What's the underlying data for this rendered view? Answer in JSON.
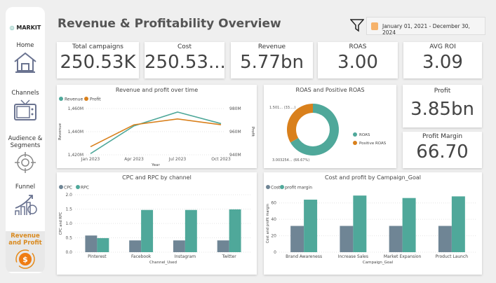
{
  "sidebar": {
    "logo": "MARKIT",
    "items": [
      {
        "label": "Home",
        "icon": "home-icon"
      },
      {
        "label": "Channels",
        "icon": "tv-icon"
      },
      {
        "label": "Audience & Segments",
        "icon": "target-icon"
      },
      {
        "label": "Funnel",
        "icon": "growth-chart-icon"
      },
      {
        "label": "Revenue and Profit",
        "icon": "dollar-cycle-icon",
        "active": true
      }
    ]
  },
  "header": {
    "title": "Revenue & Profitability Overview",
    "date_range": "January 01, 2021 - December 30, 2024"
  },
  "kpis": [
    {
      "label": "Total campaigns",
      "value": "250.53K"
    },
    {
      "label": "Cost",
      "value": "250.53..."
    },
    {
      "label": "Revenue",
      "value": "5.77bn"
    },
    {
      "label": "ROAS",
      "value": "3.00"
    },
    {
      "label": "AVG ROI",
      "value": "3.09"
    }
  ],
  "profit": {
    "label": "Profit",
    "value": "3.85bn"
  },
  "profit_margin": {
    "label": "Profit Margin",
    "value": "66.70"
  },
  "colors": {
    "teal": "#4fa89a",
    "orange": "#d9801c",
    "slate": "#6f8595"
  },
  "chart_data": [
    {
      "type": "line",
      "title": "Revenue and profit over time",
      "xlabel": "Year",
      "ylabel": "Revenue",
      "y2label": "Profit",
      "categories": [
        "Jan 2023",
        "Apr 2023",
        "Jul 2023",
        "Oct 2023"
      ],
      "ylim": [
        1420,
        1460
      ],
      "yticks": [
        "1,420M",
        "1,440M",
        "1,460M"
      ],
      "y2lim": [
        940,
        980
      ],
      "y2ticks": [
        "940M",
        "960M",
        "980M"
      ],
      "series": [
        {
          "name": "Revenue",
          "axis": "left",
          "values": [
            1421,
            1445,
            1457,
            1447
          ]
        },
        {
          "name": "Profit",
          "axis": "right",
          "values": [
            947,
            966,
            971,
            966
          ]
        }
      ]
    },
    {
      "type": "pie",
      "title": "ROAS and Positive ROAS",
      "donut": true,
      "slices": [
        {
          "name": "ROAS",
          "value": 3.003254,
          "label": "3.003254... (66.67%)"
        },
        {
          "name": "Positive ROAS",
          "value": 1.501,
          "label": "1.501... (33....)"
        }
      ]
    },
    {
      "type": "bar",
      "title": "CPC and RPC by channel",
      "xlabel": "Channel_Used",
      "ylabel": "CPC and RPC",
      "ylim": [
        0,
        2
      ],
      "yticks": [
        "0.0",
        "0.5",
        "1.0",
        "1.5",
        "2.0"
      ],
      "categories": [
        "Pinterest",
        "Facebook",
        "Instagram",
        "Twitter"
      ],
      "series": [
        {
          "name": "CPC",
          "values": [
            0.58,
            0.41,
            0.41,
            0.41
          ]
        },
        {
          "name": "RPC",
          "values": [
            0.49,
            1.47,
            1.47,
            1.49
          ]
        }
      ]
    },
    {
      "type": "bar",
      "title": "Cost and profit by Campaign_Goal",
      "xlabel": "Campaign_Goal",
      "ylabel": "Cost and profit margin",
      "ylim": [
        0,
        70
      ],
      "yticks": [
        "0",
        "20",
        "40",
        "60"
      ],
      "categories": [
        "Brand Awareness",
        "Increase Sales",
        "Market Expansion",
        "Product Launch"
      ],
      "series": [
        {
          "name": "Cost",
          "values": [
            32,
            32,
            32,
            32
          ]
        },
        {
          "name": "profit margin",
          "values": [
            64,
            69,
            66,
            68
          ]
        }
      ]
    }
  ]
}
